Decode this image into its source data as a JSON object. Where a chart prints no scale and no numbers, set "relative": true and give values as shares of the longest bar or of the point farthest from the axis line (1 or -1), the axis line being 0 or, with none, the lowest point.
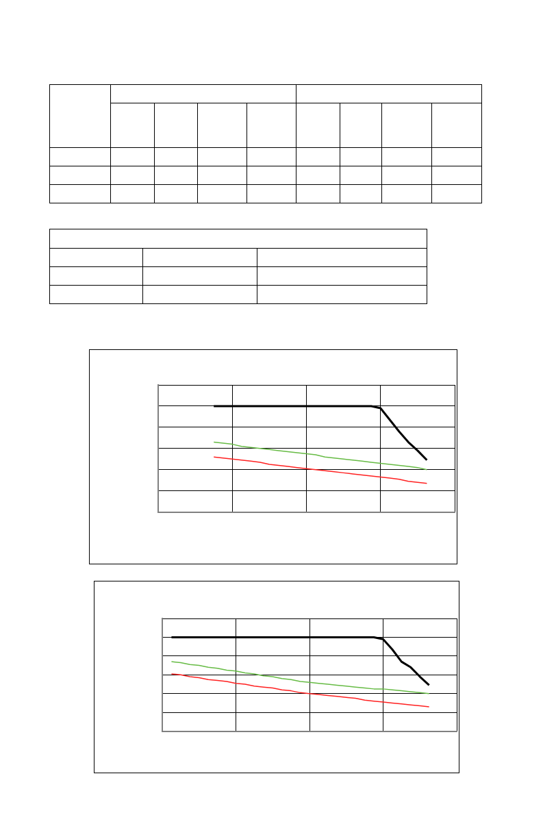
{
  "chart_data": [
    {
      "type": "line",
      "relative": true,
      "grid": true,
      "legend": false,
      "marker": "none",
      "categories": [
        null,
        null,
        null,
        null,
        null,
        null,
        null,
        null,
        null,
        null,
        null,
        null,
        null,
        null,
        null,
        null,
        null,
        null,
        null,
        null,
        null,
        null,
        null,
        null,
        null,
        null,
        null,
        null,
        null,
        null,
        null,
        null,
        null
      ],
      "series": [
        {
          "color": "#000000",
          "values": [
            null,
            null,
            null,
            null,
            null,
            null,
            1,
            1,
            1,
            1,
            1,
            1,
            1,
            1,
            1,
            1,
            1,
            1,
            1,
            1,
            1,
            1,
            1,
            1,
            0.98,
            0.87,
            0.76,
            0.66,
            0.58,
            0.49,
            null,
            null,
            null
          ]
        },
        {
          "color": "#66bb44",
          "values": [
            null,
            null,
            null,
            null,
            null,
            null,
            0.66,
            0.65,
            0.64,
            0.62,
            0.61,
            0.6,
            0.59,
            0.58,
            0.57,
            0.56,
            0.55,
            0.54,
            0.52,
            0.51,
            0.5,
            0.49,
            0.48,
            0.47,
            0.46,
            0.45,
            0.44,
            0.43,
            0.42,
            0.4,
            null,
            null,
            null
          ]
        },
        {
          "color": "#ff2020",
          "values": [
            null,
            null,
            null,
            null,
            null,
            null,
            0.52,
            0.51,
            0.5,
            0.49,
            0.48,
            0.47,
            0.45,
            0.44,
            0.43,
            0.42,
            0.41,
            0.4,
            0.39,
            0.38,
            0.37,
            0.36,
            0.35,
            0.34,
            0.33,
            0.32,
            0.31,
            0.29,
            0.28,
            0.27,
            null,
            null,
            null
          ]
        }
      ]
    },
    {
      "type": "line",
      "relative": true,
      "grid": true,
      "legend": false,
      "marker": "none",
      "categories": [
        null,
        null,
        null,
        null,
        null,
        null,
        null,
        null,
        null,
        null,
        null,
        null,
        null,
        null,
        null,
        null,
        null,
        null,
        null,
        null,
        null,
        null,
        null,
        null,
        null,
        null,
        null,
        null,
        null,
        null,
        null,
        null,
        null
      ],
      "series": [
        {
          "color": "#000000",
          "values": [
            null,
            1,
            1,
            1,
            1,
            1,
            1,
            1,
            1,
            1,
            1,
            1,
            1,
            1,
            1,
            1,
            1,
            1,
            1,
            1,
            1,
            1,
            1,
            1,
            0.98,
            0.87,
            0.74,
            0.68,
            0.58,
            0.49,
            null,
            null,
            null
          ]
        },
        {
          "color": "#66bb44",
          "values": [
            null,
            0.74,
            0.73,
            0.71,
            0.7,
            0.68,
            0.67,
            0.65,
            0.64,
            0.62,
            0.61,
            0.59,
            0.58,
            0.56,
            0.55,
            0.53,
            0.52,
            0.51,
            0.5,
            0.49,
            0.48,
            0.47,
            0.46,
            0.45,
            0.45,
            0.44,
            0.43,
            0.42,
            0.41,
            0.4,
            null,
            null,
            null
          ]
        },
        {
          "color": "#ff2020",
          "values": [
            null,
            0.61,
            0.6,
            0.58,
            0.57,
            0.55,
            0.54,
            0.53,
            0.51,
            0.5,
            0.48,
            0.47,
            0.46,
            0.44,
            0.43,
            0.41,
            0.4,
            0.39,
            0.38,
            0.37,
            0.36,
            0.35,
            0.33,
            0.32,
            0.31,
            0.3,
            0.29,
            0.28,
            0.27,
            0.26,
            null,
            null,
            null
          ]
        }
      ]
    }
  ]
}
